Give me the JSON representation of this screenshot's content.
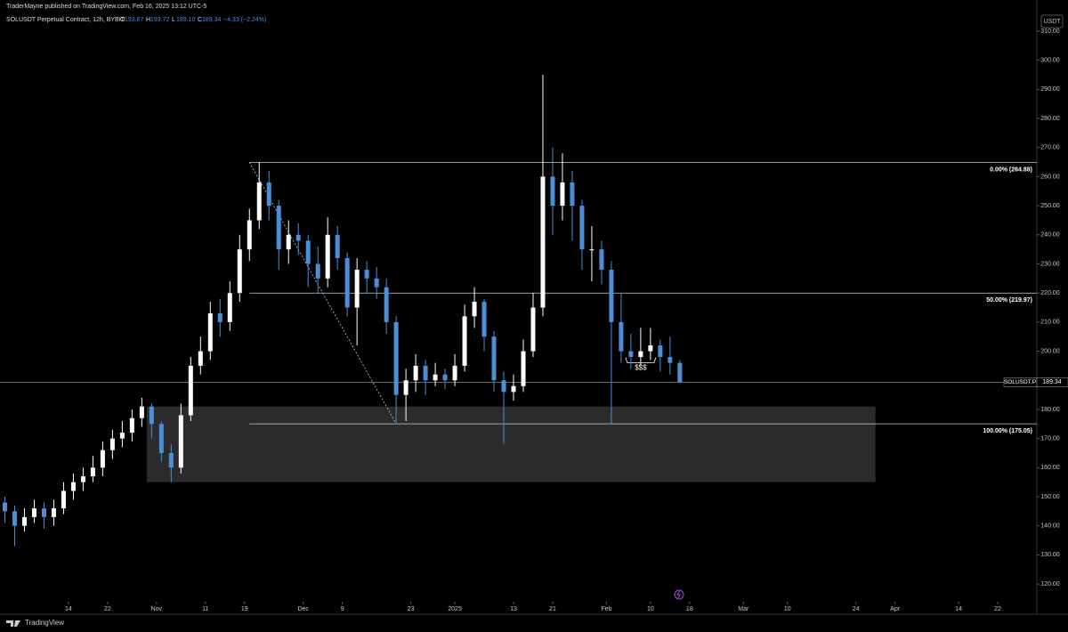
{
  "header": {
    "published": "TraderMayne published on TradingView.com, Feb 16, 2025 13:12 UTC-5",
    "symbol": "SOLUSDT Perpetual Contract, 12h, BYBIT",
    "ohlc": [
      {
        "key": "O",
        "value": "193.67"
      },
      {
        "key": "H",
        "value": "193.72"
      },
      {
        "key": "L",
        "value": "189.10"
      },
      {
        "key": "C",
        "value": "189.34"
      }
    ],
    "change": "−4.33 (−2.24%)",
    "currency": "USDT"
  },
  "footer": {
    "brand": "TradingView"
  },
  "chart_data": {
    "type": "candlestick",
    "up_color": "#ffffff",
    "down_color": "#4a8fd8",
    "x": [
      "Oct 1",
      "Oct 3",
      "Oct 5",
      "Oct 7",
      "Oct 9",
      "Oct 11",
      "Oct 13",
      "Oct 15",
      "Oct 17",
      "Oct 19",
      "Oct 21",
      "Oct 23",
      "Oct 25",
      "Oct 27",
      "Oct 29",
      "Oct 31",
      "Nov 2",
      "Nov 4",
      "Nov 6",
      "Nov 8",
      "Nov 10",
      "Nov 12",
      "Nov 14",
      "Nov 16",
      "Nov 18",
      "Nov 20",
      "Nov 22",
      "Nov 24",
      "Nov 26",
      "Nov 28",
      "Nov 30",
      "Dec 2",
      "Dec 4",
      "Dec 6",
      "Dec 8",
      "Dec 10",
      "Dec 12",
      "Dec 14",
      "Dec 16",
      "Dec 18",
      "Dec 20",
      "Dec 22",
      "Dec 24",
      "Dec 26",
      "Dec 28",
      "Dec 30",
      "Jan 1",
      "Jan 3",
      "Jan 5",
      "Jan 7",
      "Jan 9",
      "Jan 11",
      "Jan 13",
      "Jan 15",
      "Jan 17",
      "Jan 19",
      "Jan 21",
      "Jan 23",
      "Jan 25",
      "Jan 27",
      "Jan 29",
      "Jan 31",
      "Feb 2",
      "Feb 4",
      "Feb 6",
      "Feb 8",
      "Feb 10",
      "Feb 12",
      "Feb 14",
      "Feb 16"
    ],
    "open": [
      148,
      145,
      140,
      143,
      146,
      143,
      146,
      152,
      155,
      157,
      160,
      166,
      170,
      172,
      177,
      181,
      175,
      165,
      160,
      178,
      195,
      200,
      213,
      210,
      220,
      235,
      245,
      258,
      250,
      235,
      240,
      238,
      230,
      225,
      240,
      232,
      215,
      228,
      225,
      222,
      210,
      185,
      190,
      195,
      190,
      192,
      190,
      195,
      212,
      217,
      205,
      190,
      186,
      188,
      200,
      215,
      260,
      250,
      258,
      250,
      235,
      235,
      228,
      210,
      200,
      198,
      200,
      202,
      198,
      196
    ],
    "high": [
      150,
      147,
      146,
      149,
      148,
      149,
      155,
      158,
      160,
      164,
      169,
      173,
      176,
      180,
      184,
      182,
      176,
      168,
      182,
      198,
      205,
      217,
      218,
      224,
      240,
      249,
      265,
      262,
      252,
      245,
      244,
      240,
      236,
      246,
      243,
      234,
      232,
      231,
      229,
      225,
      212,
      194,
      199,
      197,
      196,
      194,
      199,
      216,
      222,
      218,
      207,
      193,
      192,
      204,
      220,
      295,
      270,
      268,
      262,
      252,
      243,
      238,
      231,
      220,
      206,
      208,
      208,
      204,
      205,
      197
    ],
    "low": [
      141,
      133,
      138,
      141,
      139,
      140,
      144,
      149,
      152,
      155,
      157,
      163,
      167,
      169,
      174,
      170,
      162,
      155,
      158,
      176,
      192,
      197,
      205,
      207,
      217,
      231,
      242,
      245,
      228,
      230,
      233,
      222,
      220,
      222,
      228,
      212,
      202,
      220,
      218,
      206,
      175,
      176,
      186,
      185,
      188,
      187,
      188,
      193,
      208,
      200,
      186,
      168,
      183,
      186,
      198,
      212,
      240,
      245,
      238,
      228,
      224,
      223,
      175,
      196,
      194,
      195,
      197,
      193,
      192,
      189
    ],
    "close": [
      145,
      140,
      143,
      146,
      143,
      146,
      152,
      155,
      157,
      160,
      166,
      170,
      172,
      177,
      181,
      175,
      165,
      160,
      178,
      195,
      200,
      213,
      210,
      220,
      235,
      245,
      258,
      250,
      235,
      240,
      238,
      230,
      225,
      240,
      232,
      215,
      228,
      225,
      222,
      210,
      185,
      190,
      195,
      190,
      192,
      190,
      195,
      212,
      217,
      205,
      190,
      186,
      188,
      200,
      215,
      260,
      250,
      258,
      250,
      235,
      235,
      228,
      210,
      200,
      198,
      200,
      202,
      198,
      196,
      189.34
    ],
    "xlim": [
      "Sep 30",
      "Apr 30"
    ],
    "xticks": [
      {
        "value": "Oct 14",
        "label": "14"
      },
      {
        "value": "Oct 22",
        "label": "22"
      },
      {
        "value": "Nov 1",
        "label": "Nov"
      },
      {
        "value": "Nov 11",
        "label": "11"
      },
      {
        "value": "Nov 19",
        "label": "19"
      },
      {
        "value": "Dec 1",
        "label": "Dec"
      },
      {
        "value": "Dec 9",
        "label": "9"
      },
      {
        "value": "Dec 23",
        "label": "23"
      },
      {
        "value": "Jan 1",
        "label": "2025"
      },
      {
        "value": "Jan 13",
        "label": "13"
      },
      {
        "value": "Jan 21",
        "label": "21"
      },
      {
        "value": "Feb 1",
        "label": "Feb"
      },
      {
        "value": "Feb 10",
        "label": "10"
      },
      {
        "value": "Feb 18",
        "label": "18"
      },
      {
        "value": "Mar 1",
        "label": "Mar"
      },
      {
        "value": "Mar 10",
        "label": "10"
      },
      {
        "value": "Mar 24",
        "label": "24"
      },
      {
        "value": "Apr 1",
        "label": "Apr"
      },
      {
        "value": "Apr 14",
        "label": "14"
      },
      {
        "value": "Apr 22",
        "label": "22"
      }
    ],
    "ylim": [
      113.9,
      320.7
    ],
    "yticks": [
      {
        "value": 120,
        "label": "120.00"
      },
      {
        "value": 130,
        "label": "130.00"
      },
      {
        "value": 140,
        "label": "140.00"
      },
      {
        "value": 150,
        "label": "150.00"
      },
      {
        "value": 160,
        "label": "160.00"
      },
      {
        "value": 170,
        "label": "170.00"
      },
      {
        "value": 180,
        "label": "180.00"
      },
      {
        "value": 190,
        "label": "190.00"
      },
      {
        "value": 200,
        "label": "200.00"
      },
      {
        "value": 210,
        "label": "210.00"
      },
      {
        "value": 220,
        "label": "220.00"
      },
      {
        "value": 230,
        "label": "230.00"
      },
      {
        "value": 240,
        "label": "240.00"
      },
      {
        "value": 250,
        "label": "250.00"
      },
      {
        "value": 260,
        "label": "260.00"
      },
      {
        "value": 270,
        "label": "270.00"
      },
      {
        "value": 280,
        "label": "280.00"
      },
      {
        "value": 290,
        "label": "290.00"
      },
      {
        "value": 300,
        "label": "300.00"
      },
      {
        "value": 310,
        "label": "310.00"
      }
    ],
    "zone": {
      "top": 181,
      "bottom": 155,
      "start": "Oct 30",
      "end": "Mar 28"
    },
    "fib": {
      "start": "Nov 20",
      "end": "Dec 20",
      "levels": [
        {
          "value": 264.88,
          "label": "0.00% (264.88)"
        },
        {
          "value": 219.97,
          "label": "50.00% (219.97)"
        },
        {
          "value": 175.05,
          "label": "100.00% (175.05)"
        }
      ]
    },
    "last_price": {
      "symbol": "SOLUSDT.P",
      "value": 189.34
    },
    "annotation": {
      "text": "$$$",
      "date": "Feb 8",
      "value": 196
    }
  }
}
